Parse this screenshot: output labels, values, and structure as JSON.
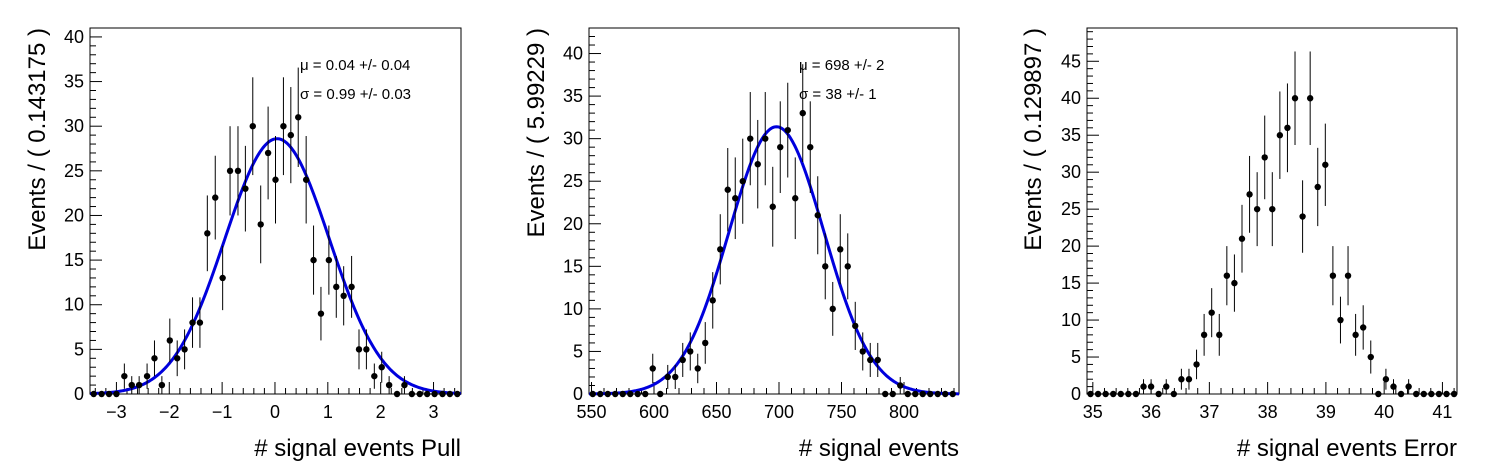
{
  "chart_data": [
    {
      "type": "scatter",
      "xlabel": "# signal events Pull",
      "ylabel": "Events / ( 0.143175 )",
      "xlim": [
        -3.5,
        3.52
      ],
      "ylim": [
        0,
        41
      ],
      "xticks": [
        -3,
        -2,
        -1,
        0,
        1,
        2,
        3
      ],
      "yticks": [
        0,
        5,
        10,
        15,
        20,
        25,
        30,
        35,
        40
      ],
      "fit": {
        "mu": 0.04,
        "sigma": 0.99,
        "peak": 28.6,
        "color": "#0000dd"
      },
      "annotations": [
        "μ =  0.04 +/- 0.04",
        "σ =  0.99 +/- 0.03"
      ],
      "x": [
        -3.43,
        -3.28,
        -3.14,
        -3.0,
        -2.85,
        -2.71,
        -2.57,
        -2.42,
        -2.28,
        -2.14,
        -1.99,
        -1.85,
        -1.71,
        -1.56,
        -1.42,
        -1.28,
        -1.13,
        -0.99,
        -0.85,
        -0.7,
        -0.56,
        -0.42,
        -0.27,
        -0.13,
        0.01,
        0.16,
        0.3,
        0.44,
        0.59,
        0.73,
        0.87,
        1.02,
        1.16,
        1.3,
        1.45,
        1.59,
        1.73,
        1.88,
        2.02,
        2.16,
        2.31,
        2.45,
        2.59,
        2.74,
        2.88,
        3.02,
        3.17,
        3.31,
        3.45
      ],
      "y": [
        0,
        0,
        0,
        0,
        2,
        1,
        1,
        2,
        4,
        1,
        6,
        4,
        5,
        8,
        8,
        18,
        22,
        13,
        25,
        25,
        23,
        30,
        19,
        27,
        24,
        30,
        29,
        31,
        24,
        15,
        9,
        15,
        12,
        11,
        12,
        5,
        5,
        2,
        3,
        1,
        0,
        1,
        0,
        0,
        0,
        0,
        0,
        0,
        0
      ]
    },
    {
      "type": "scatter",
      "xlabel": "# signal events",
      "ylabel": "Events / ( 5.99229 )",
      "xlim": [
        548,
        844
      ],
      "ylim": [
        0,
        43
      ],
      "xticks": [
        550,
        600,
        650,
        700,
        750,
        800
      ],
      "yticks": [
        0,
        5,
        10,
        15,
        20,
        25,
        30,
        35,
        40
      ],
      "fit": {
        "mu": 698,
        "sigma": 38,
        "peak": 31.4,
        "color": "#0000dd"
      },
      "annotations": [
        "μ =  698 +/- 2",
        "σ =  38 +/- 1"
      ],
      "x": [
        551,
        557,
        563,
        569,
        575,
        581,
        587,
        593,
        599,
        605,
        611,
        617,
        623,
        629,
        635,
        641,
        647,
        653,
        659,
        665,
        671,
        677,
        683,
        689,
        695,
        701,
        707,
        713,
        719,
        725,
        731,
        737,
        743,
        749,
        755,
        761,
        767,
        773,
        779,
        785,
        791,
        797,
        803,
        809,
        815,
        821,
        827,
        833,
        839
      ],
      "y": [
        0,
        0,
        0,
        0,
        0,
        0,
        0,
        0,
        3,
        0,
        2,
        2,
        4,
        5,
        3,
        6,
        11,
        17,
        24,
        23,
        25,
        30,
        27,
        30,
        22,
        29,
        31,
        23,
        33,
        29,
        21,
        15,
        10,
        17,
        15,
        8,
        5,
        4,
        4,
        0,
        0,
        1,
        0,
        0,
        0,
        0,
        0,
        0,
        0
      ]
    },
    {
      "type": "scatter",
      "xlabel": "# signal events Error",
      "ylabel": "Events / ( 0.129897 )",
      "xlim": [
        34.9,
        41.25
      ],
      "ylim": [
        0,
        49.5
      ],
      "xticks": [
        35,
        36,
        37,
        38,
        39,
        40,
        41
      ],
      "yticks": [
        0,
        5,
        10,
        15,
        20,
        25,
        30,
        35,
        40,
        45
      ],
      "x": [
        34.96,
        35.09,
        35.22,
        35.35,
        35.48,
        35.61,
        35.74,
        35.87,
        36.0,
        36.13,
        36.26,
        36.39,
        36.52,
        36.65,
        36.78,
        36.91,
        37.04,
        37.17,
        37.3,
        37.43,
        37.56,
        37.69,
        37.82,
        37.95,
        38.08,
        38.21,
        38.34,
        38.47,
        38.6,
        38.73,
        38.86,
        38.99,
        39.12,
        39.25,
        39.38,
        39.51,
        39.64,
        39.77,
        39.9,
        40.03,
        40.16,
        40.29,
        40.42,
        40.55,
        40.68,
        40.81,
        40.94,
        41.07,
        41.2
      ],
      "y": [
        0,
        0,
        0,
        0,
        0,
        0,
        0,
        1,
        1,
        0,
        1,
        0,
        2,
        2,
        4,
        8,
        11,
        8,
        16,
        15,
        21,
        27,
        25,
        32,
        25,
        35,
        36,
        40,
        24,
        40,
        28,
        31,
        16,
        10,
        16,
        8,
        9,
        5,
        0,
        2,
        1,
        0,
        1,
        0,
        0,
        0,
        0,
        0,
        0
      ]
    }
  ]
}
